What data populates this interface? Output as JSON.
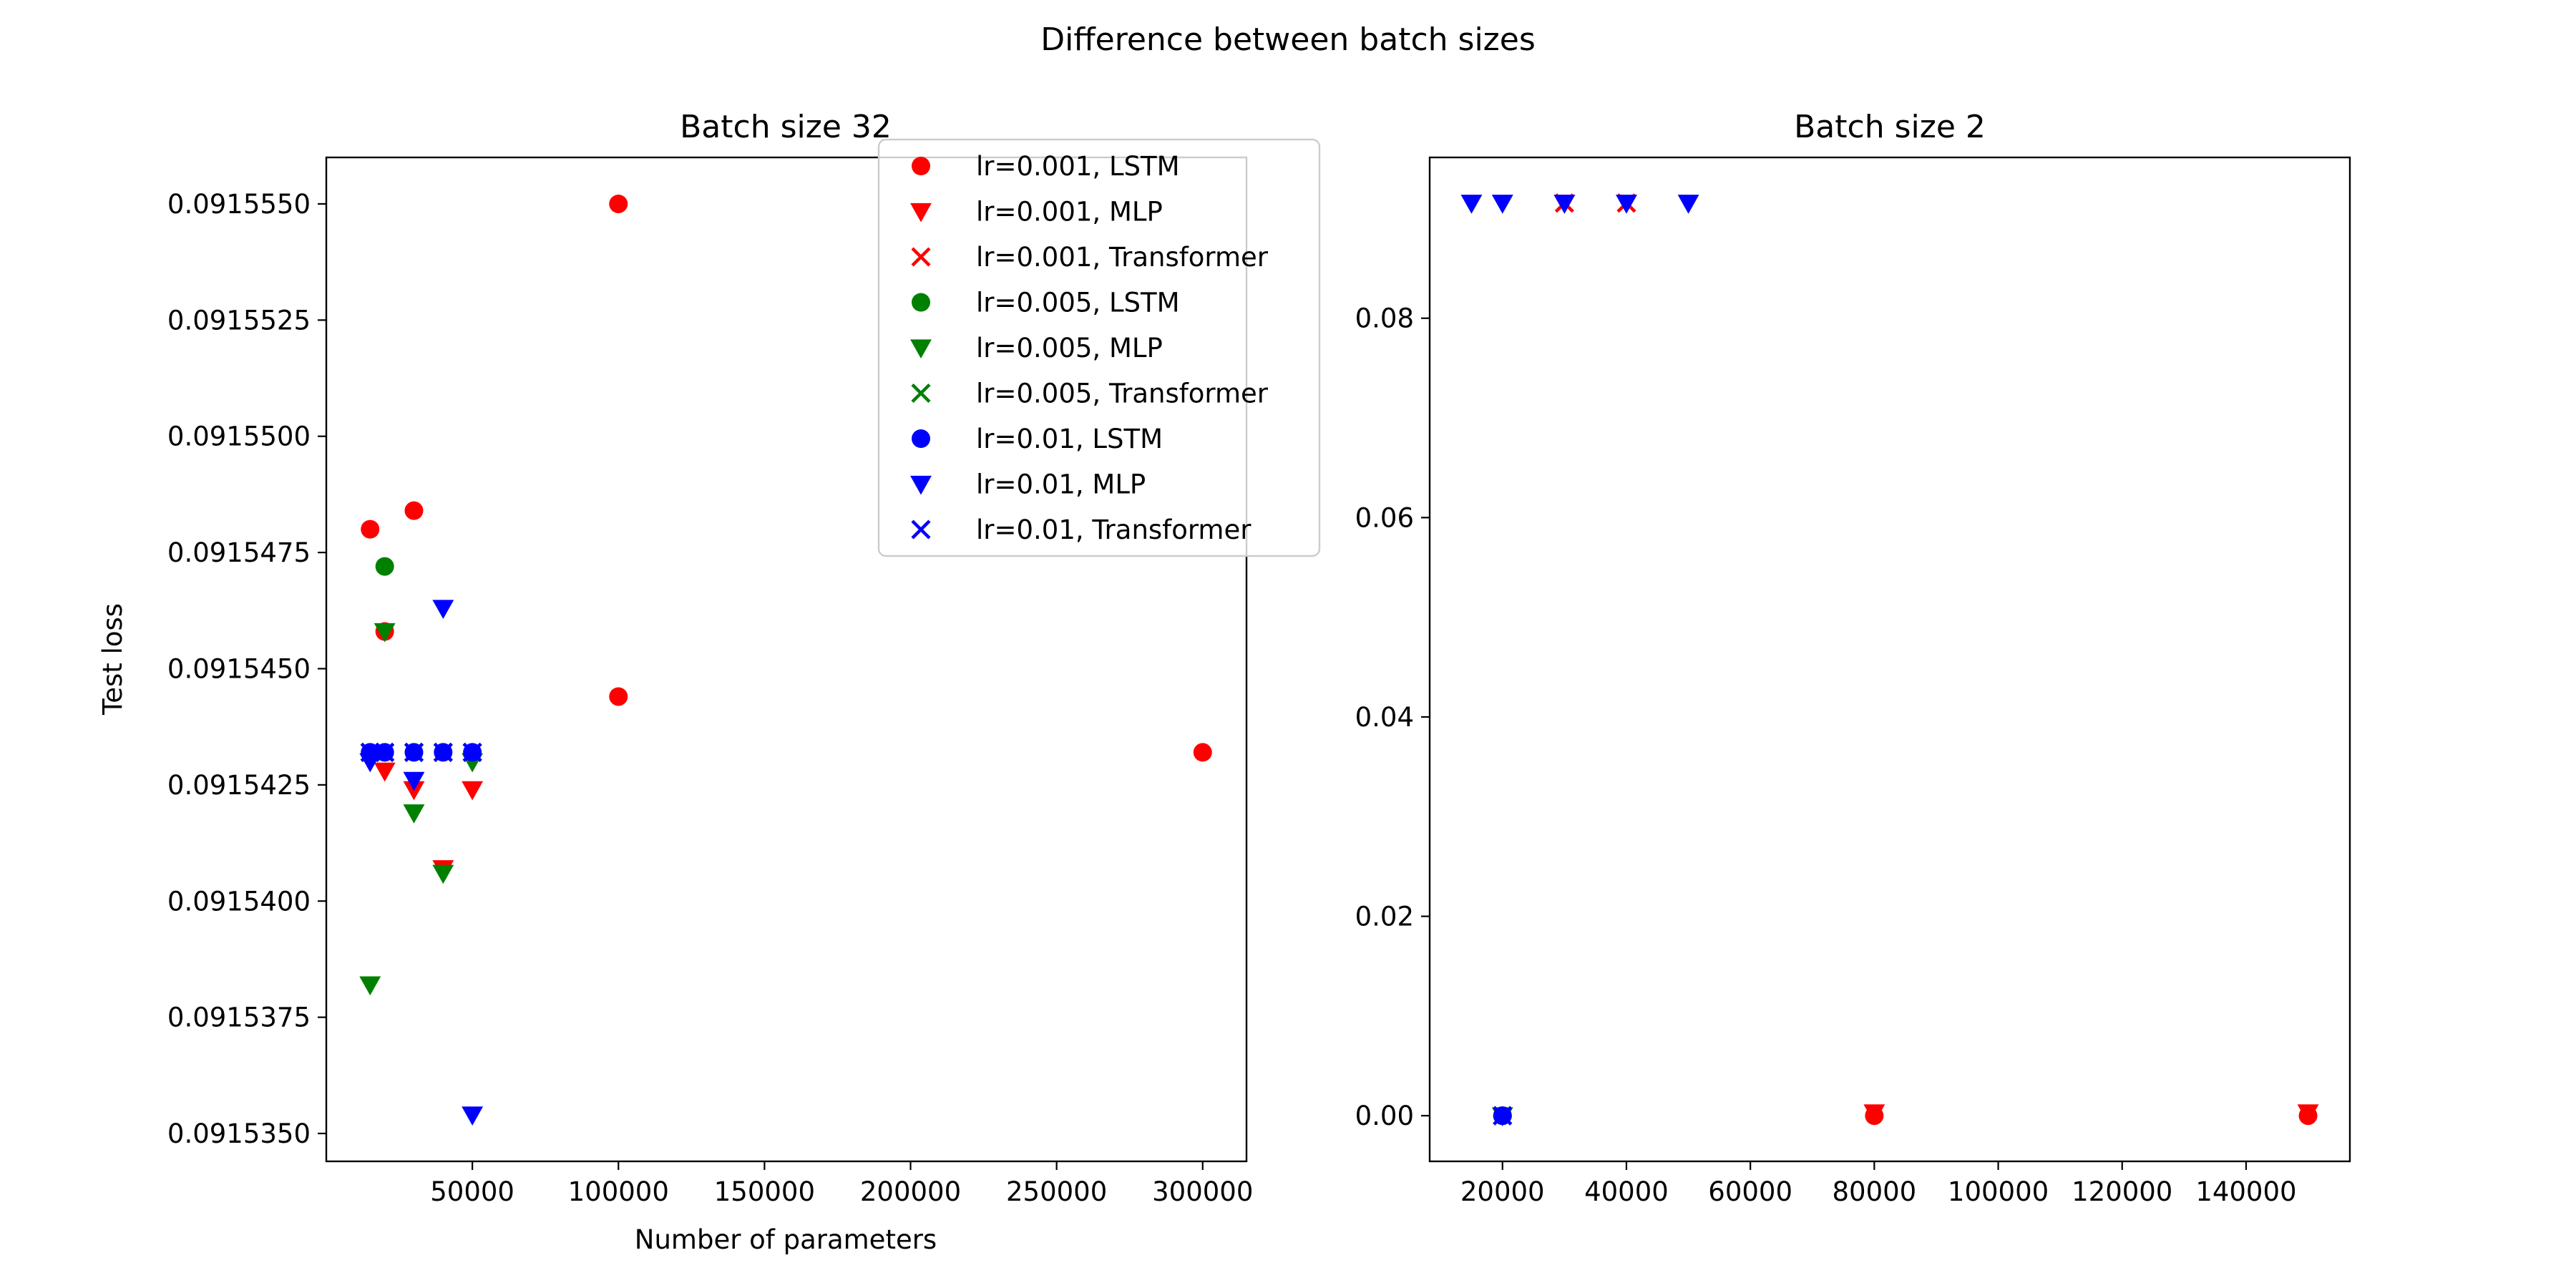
{
  "title": "Difference between batch sizes",
  "legend": {
    "placement": "top-right of left panel",
    "entries": [
      {
        "label": "lr=0.001, LSTM",
        "color": "#ff0000",
        "marker": "circle"
      },
      {
        "label": "lr=0.001, MLP",
        "color": "#ff0000",
        "marker": "triangle-down"
      },
      {
        "label": "lr=0.001, Transformer",
        "color": "#ff0000",
        "marker": "x"
      },
      {
        "label": "lr=0.005, LSTM",
        "color": "#008000",
        "marker": "circle"
      },
      {
        "label": "lr=0.005, MLP",
        "color": "#008000",
        "marker": "triangle-down"
      },
      {
        "label": "lr=0.005, Transformer",
        "color": "#008000",
        "marker": "x"
      },
      {
        "label": "lr=0.01, LSTM",
        "color": "#0000ff",
        "marker": "circle"
      },
      {
        "label": "lr=0.01, MLP",
        "color": "#0000ff",
        "marker": "triangle-down"
      },
      {
        "label": "lr=0.01, Transformer",
        "color": "#0000ff",
        "marker": "x"
      }
    ]
  },
  "chart_data": [
    {
      "type": "scatter",
      "title": "Batch size 32",
      "xlabel": "Number of parameters",
      "ylabel": "Test loss",
      "xlim": [
        0,
        315000
      ],
      "ylim": [
        0.0915344,
        0.091556
      ],
      "xticks": [
        50000,
        100000,
        150000,
        200000,
        250000,
        300000
      ],
      "xtick_labels": [
        "50000",
        "100000",
        "150000",
        "200000",
        "250000",
        "300000"
      ],
      "yticks": [
        0.091535,
        0.0915375,
        0.09154,
        0.0915425,
        0.091545,
        0.0915475,
        0.09155,
        0.0915525,
        0.091555
      ],
      "ytick_labels": [
        "0.0915350",
        "0.0915375",
        "0.0915400",
        "0.0915425",
        "0.0915450",
        "0.0915475",
        "0.0915500",
        "0.0915525",
        "0.0915550"
      ],
      "grid": false,
      "series": [
        {
          "name": "lr=0.001, LSTM",
          "color": "#ff0000",
          "marker": "circle",
          "points": [
            [
              15000,
              0.091548
            ],
            [
              20000,
              0.0915458
            ],
            [
              30000,
              0.0915484
            ],
            [
              100000,
              0.091555
            ],
            [
              100000,
              0.0915444
            ],
            [
              300000,
              0.0915432
            ]
          ]
        },
        {
          "name": "lr=0.001, MLP",
          "color": "#ff0000",
          "marker": "triangle-down",
          "points": [
            [
              20000,
              0.0915428
            ],
            [
              30000,
              0.0915424
            ],
            [
              40000,
              0.0915407
            ],
            [
              50000,
              0.0915424
            ]
          ]
        },
        {
          "name": "lr=0.001, Transformer",
          "color": "#ff0000",
          "marker": "x",
          "points": [
            [
              15000,
              0.0915432
            ],
            [
              20000,
              0.0915432
            ],
            [
              30000,
              0.0915432
            ],
            [
              40000,
              0.0915432
            ],
            [
              50000,
              0.0915432
            ]
          ]
        },
        {
          "name": "lr=0.005, LSTM",
          "color": "#008000",
          "marker": "circle",
          "points": [
            [
              20000,
              0.0915472
            ]
          ]
        },
        {
          "name": "lr=0.005, MLP",
          "color": "#008000",
          "marker": "triangle-down",
          "points": [
            [
              15000,
              0.0915382
            ],
            [
              20000,
              0.0915458
            ],
            [
              30000,
              0.0915419
            ],
            [
              40000,
              0.0915406
            ],
            [
              50000,
              0.091543
            ]
          ]
        },
        {
          "name": "lr=0.005, Transformer",
          "color": "#008000",
          "marker": "x",
          "points": [
            [
              15000,
              0.0915432
            ],
            [
              20000,
              0.0915432
            ],
            [
              30000,
              0.0915432
            ],
            [
              40000,
              0.0915432
            ],
            [
              50000,
              0.0915432
            ]
          ]
        },
        {
          "name": "lr=0.01, LSTM",
          "color": "#0000ff",
          "marker": "circle",
          "points": [
            [
              15000,
              0.0915432
            ],
            [
              20000,
              0.0915432
            ],
            [
              30000,
              0.0915432
            ],
            [
              40000,
              0.0915432
            ],
            [
              50000,
              0.0915432
            ]
          ]
        },
        {
          "name": "lr=0.01, MLP",
          "color": "#0000ff",
          "marker": "triangle-down",
          "points": [
            [
              15000,
              0.091543
            ],
            [
              30000,
              0.0915426
            ],
            [
              40000,
              0.0915463
            ],
            [
              50000,
              0.0915354
            ]
          ]
        },
        {
          "name": "lr=0.01, Transformer",
          "color": "#0000ff",
          "marker": "x",
          "points": [
            [
              15000,
              0.0915432
            ],
            [
              20000,
              0.0915432
            ],
            [
              30000,
              0.0915432
            ],
            [
              40000,
              0.0915432
            ],
            [
              50000,
              0.0915432
            ]
          ]
        }
      ]
    },
    {
      "type": "scatter",
      "title": "Batch size 2",
      "xlabel": "",
      "ylabel": "",
      "xlim": [
        8250,
        156750
      ],
      "ylim": [
        -0.00458,
        0.09613
      ],
      "xticks": [
        20000,
        40000,
        60000,
        80000,
        100000,
        120000,
        140000
      ],
      "xtick_labels": [
        "20000",
        "40000",
        "60000",
        "80000",
        "100000",
        "120000",
        "140000"
      ],
      "yticks": [
        0,
        0.02,
        0.04,
        0.06,
        0.08
      ],
      "ytick_labels": [
        "0.00",
        "0.02",
        "0.04",
        "0.06",
        "0.08"
      ],
      "grid": false,
      "series": [
        {
          "name": "lr=0.001, LSTM",
          "color": "#ff0000",
          "marker": "circle",
          "points": [
            [
              20000,
              0.0
            ],
            [
              80000,
              0.0
            ],
            [
              150000,
              0.0
            ]
          ]
        },
        {
          "name": "lr=0.001, MLP",
          "color": "#ff0000",
          "marker": "triangle-down",
          "points": [
            [
              30000,
              0.09155
            ],
            [
              80000,
              0.0003
            ],
            [
              150000,
              0.0003
            ]
          ]
        },
        {
          "name": "lr=0.001, Transformer",
          "color": "#ff0000",
          "marker": "x",
          "points": [
            [
              20000,
              0.0
            ],
            [
              30000,
              0.09155
            ],
            [
              40000,
              0.09155
            ]
          ]
        },
        {
          "name": "lr=0.005, LSTM",
          "color": "#008000",
          "marker": "circle",
          "points": [
            [
              20000,
              0.0
            ]
          ]
        },
        {
          "name": "lr=0.005, MLP",
          "color": "#008000",
          "marker": "triangle-down",
          "points": [
            [
              20000,
              0.0
            ]
          ]
        },
        {
          "name": "lr=0.005, Transformer",
          "color": "#008000",
          "marker": "x",
          "points": [
            [
              20000,
              0.0
            ]
          ]
        },
        {
          "name": "lr=0.01, LSTM",
          "color": "#0000ff",
          "marker": "circle",
          "points": [
            [
              20000,
              0.0
            ]
          ]
        },
        {
          "name": "lr=0.01, MLP",
          "color": "#0000ff",
          "marker": "triangle-down",
          "points": [
            [
              15000,
              0.09155
            ],
            [
              20000,
              0.09155
            ],
            [
              30000,
              0.09155
            ],
            [
              40000,
              0.09155
            ],
            [
              50000,
              0.09155
            ]
          ]
        },
        {
          "name": "lr=0.01, Transformer",
          "color": "#0000ff",
          "marker": "x",
          "points": [
            [
              20000,
              0.0
            ]
          ]
        }
      ]
    }
  ]
}
